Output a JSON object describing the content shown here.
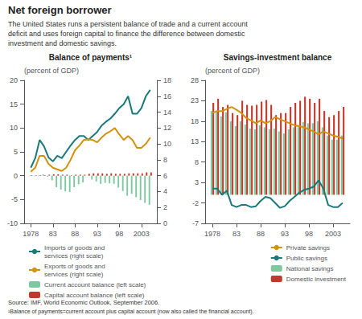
{
  "title": "Net foreign borrower",
  "subtitle": "The United States runs a persistent balance of trade and a current account\ndeficit and uses foreign capital to finance the difference between domestic\ninvestment and domestic savings.",
  "source": "Source: IMF, World Economic Outlook, September 2006.",
  "footnote": "¹Balance of payments=current account plus capital account (now also called the financial account).",
  "chart_data": [
    {
      "type": "bar",
      "title": "Balance of payments¹",
      "ylabel": "(percent of GDP)",
      "x": [
        1978,
        1979,
        1980,
        1981,
        1982,
        1983,
        1984,
        1985,
        1986,
        1987,
        1988,
        1989,
        1990,
        1991,
        1992,
        1993,
        1994,
        1995,
        1996,
        1997,
        1998,
        1999,
        2000,
        2001,
        2002,
        2003,
        2004,
        2005
      ],
      "xlim": [
        1976.5,
        2006.5
      ],
      "xticks": [
        1978,
        {
          "value": 1983,
          "label": "83"
        },
        {
          "value": 1988,
          "label": "88"
        },
        {
          "value": 1993,
          "label": "93"
        },
        {
          "value": 1998,
          "label": "98"
        },
        2003
      ],
      "ylim": [
        -10,
        20
      ],
      "yticks": [
        -10,
        -5,
        0,
        5,
        10,
        15,
        20
      ],
      "y2lim": [
        0,
        18
      ],
      "y2ticks": [
        0,
        2,
        4,
        6,
        8,
        10,
        12,
        14,
        16,
        18
      ],
      "grid": false,
      "legend": "lower left",
      "series": [
        {
          "name": "Imports of goods and\nservices (right scale)",
          "type": "line",
          "axis": "y2",
          "color": "#1a7a7a",
          "values": [
            7.0,
            8.2,
            10.5,
            9.7,
            8.3,
            7.8,
            8.5,
            8.2,
            9.0,
            9.8,
            10.5,
            11.0,
            11.0,
            10.5,
            11.0,
            11.5,
            12.3,
            12.8,
            13.2,
            13.8,
            14.5,
            15.0,
            16.0,
            13.8,
            13.8,
            14.5,
            16.0,
            16.8
          ]
        },
        {
          "name": "Exports of goods and\nservices (right scale)",
          "type": "line",
          "axis": "y2",
          "color": "#d4920a",
          "values": [
            6.5,
            7.0,
            8.5,
            8.5,
            7.5,
            7.0,
            6.8,
            6.6,
            7.0,
            8.0,
            9.2,
            9.8,
            10.5,
            10.6,
            10.5,
            10.2,
            10.8,
            11.3,
            11.6,
            12.0,
            11.2,
            10.5,
            11.0,
            10.5,
            9.5,
            9.5,
            10.0,
            10.8
          ]
        },
        {
          "name": "Current account balance (left scale)",
          "type": "bar",
          "color": "#7ec8a0",
          "values": [
            -0.1,
            -0.1,
            0.1,
            0.3,
            -0.2,
            -1.0,
            -2.4,
            -2.9,
            -3.3,
            -3.4,
            -2.4,
            -1.8,
            -1.4,
            0.0,
            -0.8,
            -1.2,
            -1.7,
            -1.5,
            -1.6,
            -1.7,
            -2.5,
            -3.2,
            -4.2,
            -3.8,
            -4.5,
            -5.1,
            -5.7,
            -6.1
          ]
        },
        {
          "name": "Capital account balance (left scale)",
          "type": "bar",
          "color": "#c0392b",
          "values": [
            0.1,
            0.1,
            0.1,
            0.1,
            0.2,
            0.3,
            0.3,
            0.2,
            0.2,
            0.1,
            0.2,
            0.2,
            0.2,
            0.4,
            0.5,
            0.5,
            0.5,
            0.4,
            0.5,
            0.4,
            0.4,
            0.4,
            0.5,
            0.5,
            0.5,
            0.5,
            0.7,
            0.7
          ]
        }
      ]
    },
    {
      "type": "bar",
      "title": "Savings-investment balance",
      "ylabel": "(percent of GDP)",
      "x": [
        1978,
        1979,
        1980,
        1981,
        1982,
        1983,
        1984,
        1985,
        1986,
        1987,
        1988,
        1989,
        1990,
        1991,
        1992,
        1993,
        1994,
        1995,
        1996,
        1997,
        1998,
        1999,
        2000,
        2001,
        2002,
        2003,
        2004,
        2005
      ],
      "xlim": [
        1976.5,
        2006.5
      ],
      "xticks": [
        1978,
        {
          "value": 1983,
          "label": "83"
        },
        {
          "value": 1988,
          "label": "88"
        },
        {
          "value": 1993,
          "label": "93"
        },
        {
          "value": 1998,
          "label": "98"
        },
        2003
      ],
      "ylim": [
        -7,
        28
      ],
      "yticks": [
        -7,
        -2,
        3,
        8,
        13,
        18,
        23,
        28
      ],
      "grid": false,
      "legend": "lower right",
      "series": [
        {
          "name": "Private savings",
          "type": "line",
          "color": "#d4920a",
          "values": [
            20.0,
            20.5,
            20.5,
            21.0,
            21.5,
            20.8,
            20.0,
            18.8,
            18.2,
            17.5,
            18.2,
            17.5,
            18.0,
            19.0,
            18.5,
            18.0,
            17.5,
            17.0,
            16.8,
            16.5,
            16.0,
            15.5,
            14.8,
            15.5,
            15.0,
            14.5,
            14.2,
            13.8
          ]
        },
        {
          "name": "Public savings",
          "type": "line",
          "color": "#1a7a7a",
          "values": [
            1.5,
            1.5,
            0.0,
            1.0,
            -2.5,
            -3.0,
            -2.5,
            -2.5,
            -3.0,
            -2.8,
            -1.5,
            -0.5,
            -0.8,
            -2.0,
            -3.2,
            -2.8,
            -1.5,
            -0.5,
            0.5,
            1.2,
            1.5,
            2.0,
            3.5,
            1.5,
            -2.5,
            -3.0,
            -3.0,
            -2.0
          ]
        },
        {
          "name": "National savings",
          "type": "bar",
          "color": "#7ec8a0",
          "values": [
            20.5,
            20.5,
            19.2,
            20.2,
            18.0,
            16.8,
            18.0,
            17.2,
            16.2,
            16.0,
            17.0,
            16.5,
            16.0,
            16.2,
            15.5,
            15.0,
            16.0,
            16.5,
            17.0,
            17.8,
            17.5,
            17.5,
            18.0,
            16.5,
            14.5,
            13.5,
            13.5,
            14.5
          ]
        },
        {
          "name": "Domestic investment",
          "type": "bar",
          "color": "#c0392b",
          "values": [
            22.5,
            23.5,
            21.5,
            22.0,
            20.0,
            19.5,
            23.0,
            22.0,
            21.8,
            22.0,
            22.8,
            23.2,
            22.0,
            19.5,
            20.0,
            20.0,
            21.5,
            22.5,
            23.0,
            24.0,
            23.5,
            22.5,
            23.5,
            20.5,
            19.0,
            19.5,
            20.5,
            21.5
          ]
        }
      ]
    }
  ]
}
